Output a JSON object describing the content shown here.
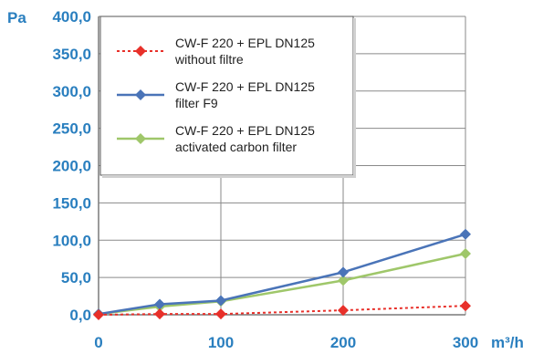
{
  "chart_data": {
    "type": "line",
    "ylabel": "Pa",
    "xlabel": "m³/h",
    "xlim": [
      0,
      300
    ],
    "ylim": [
      0,
      400
    ],
    "x_ticks": [
      0,
      100,
      200,
      300
    ],
    "x_tick_labels": [
      "0",
      "100",
      "200",
      "300"
    ],
    "y_ticks": [
      0,
      50,
      100,
      150,
      200,
      250,
      300,
      350,
      400
    ],
    "y_tick_labels": [
      "0,0",
      "50,0",
      "100,0",
      "150,0",
      "200,0",
      "250,0",
      "300,0",
      "350,0",
      "400,0"
    ],
    "grid": true,
    "legend_position": "top-left",
    "series": [
      {
        "name_line1": "CW-F 220 + EPL DN125",
        "name_line2": "without filtre",
        "color": "#e8302a",
        "dashed": true,
        "x": [
          0,
          50,
          100,
          200,
          300
        ],
        "y": [
          0,
          1,
          1,
          6,
          12
        ]
      },
      {
        "name_line1": "CW-F 220 + EPL DN125",
        "name_line2": "filter F9",
        "color": "#4a74b8",
        "dashed": false,
        "x": [
          0,
          50,
          100,
          200,
          300
        ],
        "y": [
          1,
          14,
          19,
          57,
          108
        ]
      },
      {
        "name_line1": "CW-F 220 + EPL DN125",
        "name_line2": "activated carbon filter",
        "color": "#9fc76a",
        "dashed": false,
        "x": [
          0,
          50,
          100,
          200,
          300
        ],
        "y": [
          1,
          11,
          18,
          46,
          82
        ]
      }
    ]
  }
}
